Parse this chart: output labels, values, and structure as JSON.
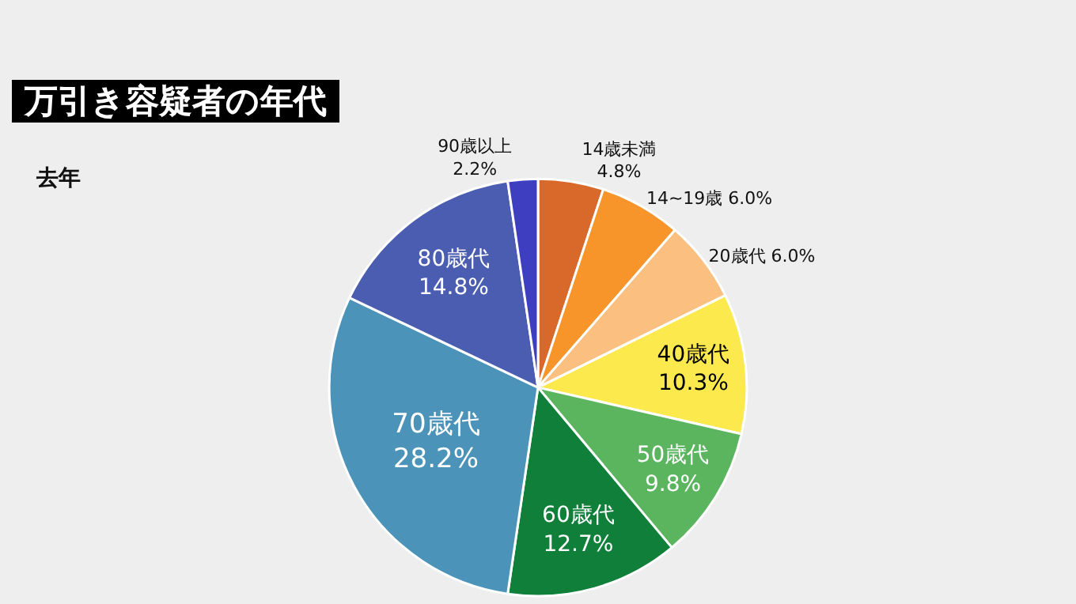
{
  "chart_data": {
    "type": "pie",
    "title": "万引き容疑者の年代",
    "subtitle": "去年",
    "categories": [
      "14歳未満",
      "14~19歳",
      "20歳代",
      "40歳代",
      "50歳代",
      "60歳代",
      "70歳代",
      "80歳代",
      "90歳以上"
    ],
    "values": [
      4.8,
      6.0,
      6.0,
      10.3,
      9.8,
      12.7,
      28.2,
      14.8,
      2.2
    ],
    "colors": [
      "#d9692a",
      "#f7952a",
      "#fbbf80",
      "#fbe94e",
      "#5bb55e",
      "#107f3a",
      "#4b93b8",
      "#4a5db0",
      "#3d3fc0"
    ],
    "value_labels": [
      "4.8%",
      "6.0%",
      "6.0%",
      "10.3%",
      "9.8%",
      "12.7%",
      "28.2%",
      "14.8%",
      "2.2%"
    ]
  }
}
